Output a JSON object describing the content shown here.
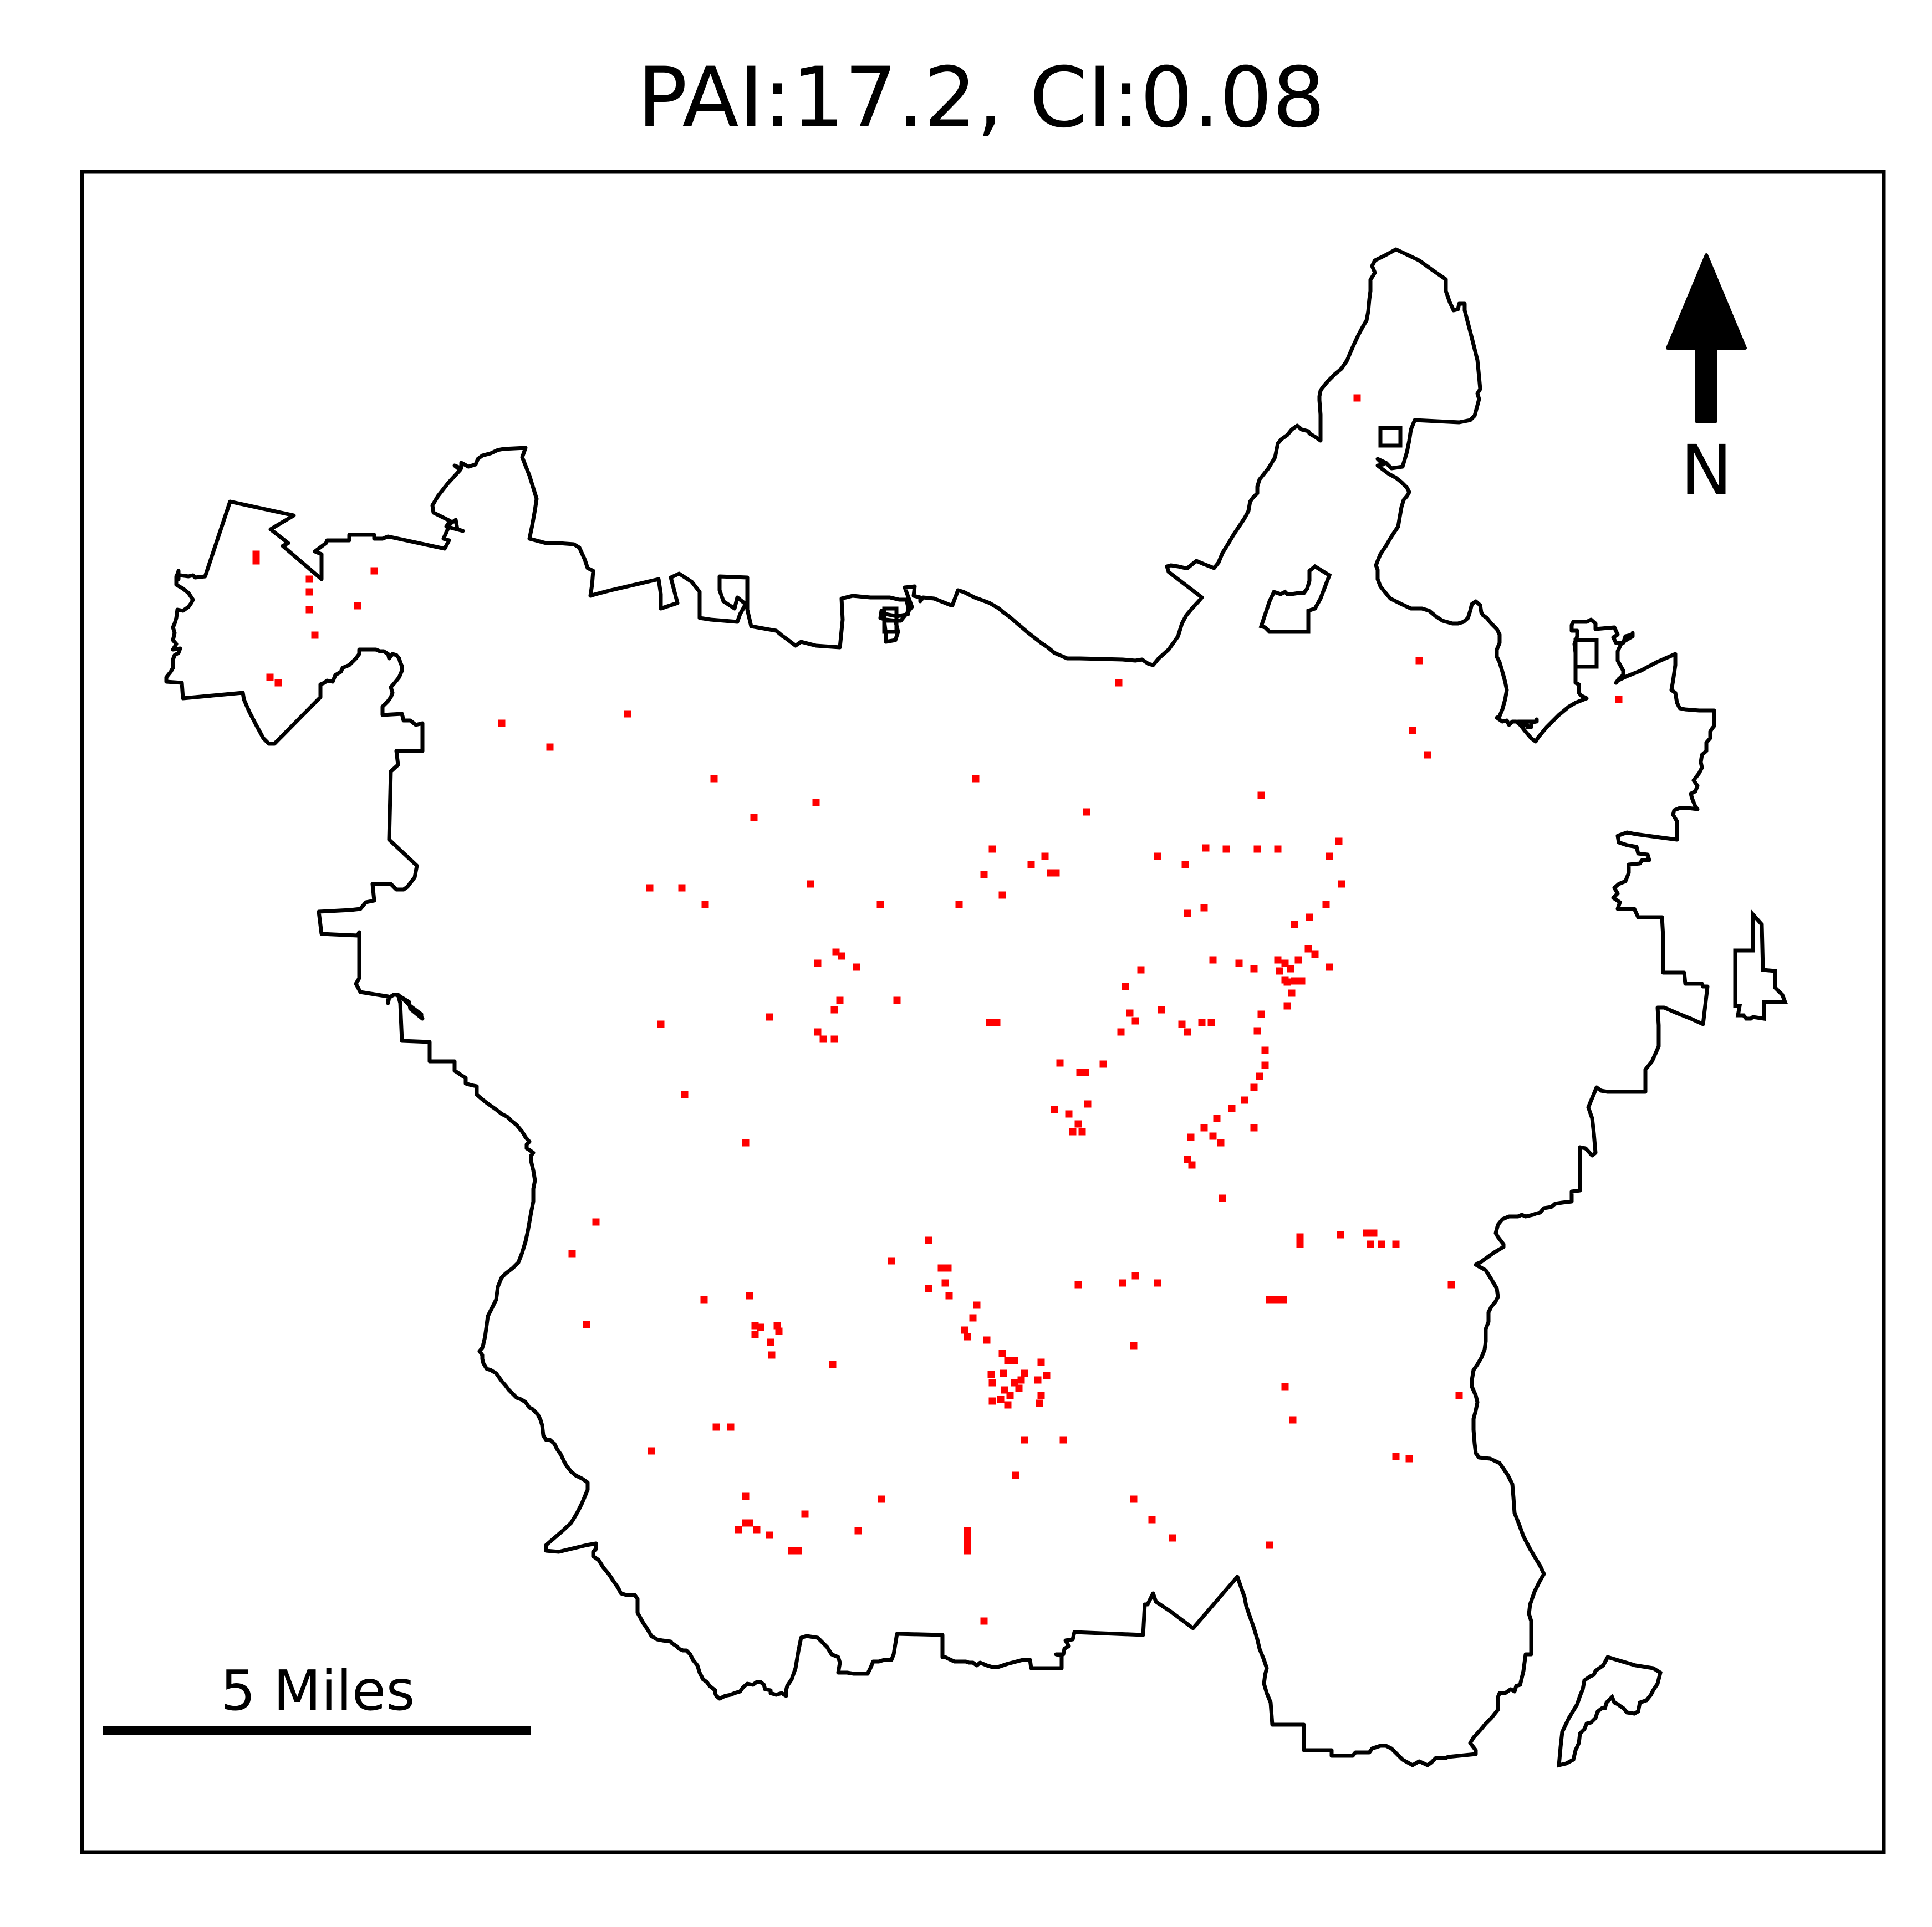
{
  "title": "PAI:17.2, CI:0.08",
  "scale_bar": {
    "label": "5 Miles"
  },
  "north_arrow": {
    "label": "N"
  },
  "colors": {
    "boundary": "#000000",
    "hotspot": "#ff0000",
    "background": "#ffffff"
  },
  "hotspot_cells": []
}
